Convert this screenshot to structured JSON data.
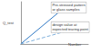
{
  "chart_data": {
    "type": "line",
    "xlabel": "Number",
    "ylabel": "Q_test",
    "xlim": [
      0,
      10
    ],
    "ylim": [
      0,
      10
    ],
    "tick_labels": false,
    "grid": false,
    "series": [
      {
        "x": [
          0,
          7.5
        ],
        "values": [
          0,
          10
        ],
        "color": "#2f78c4",
        "line_style": "solid"
      },
      {
        "x": [
          0,
          10
        ],
        "values": [
          0,
          4.5
        ],
        "color": "#7fb0dc",
        "line_style": "dashed"
      }
    ],
    "annotations": [
      "Pre-stressed pattern\nor glass samples",
      "design value at\nexpected tearing point"
    ]
  }
}
